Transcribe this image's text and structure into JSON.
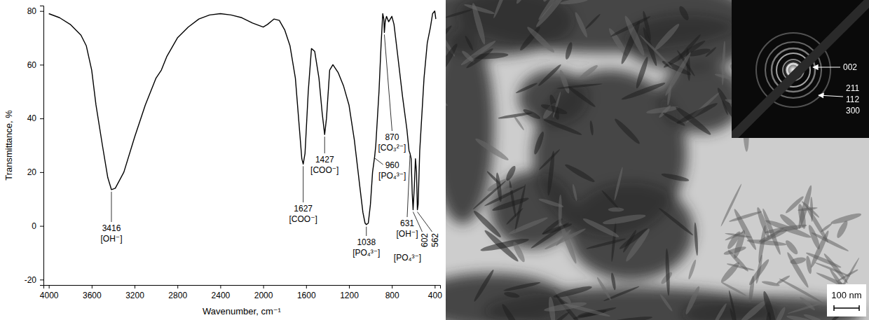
{
  "chart_data": {
    "type": "line",
    "x_label": "Wavenumber, cm⁻¹",
    "y_label": "Transmittance, %",
    "color": "#000000",
    "xlim": [
      4050,
      350
    ],
    "ylim": [
      -22,
      82
    ],
    "xticks": [
      4000,
      3600,
      3200,
      2800,
      2400,
      2000,
      1600,
      1200,
      800,
      400
    ],
    "yticks": [
      -20,
      0,
      20,
      40,
      60,
      80
    ],
    "x": [
      4000,
      3900,
      3800,
      3700,
      3650,
      3600,
      3560,
      3500,
      3450,
      3416,
      3380,
      3300,
      3200,
      3100,
      3000,
      2950,
      2900,
      2800,
      2700,
      2600,
      2500,
      2400,
      2300,
      2200,
      2100,
      2000,
      1960,
      1900,
      1850,
      1800,
      1750,
      1700,
      1660,
      1640,
      1627,
      1610,
      1580,
      1550,
      1520,
      1480,
      1450,
      1427,
      1410,
      1380,
      1350,
      1300,
      1250,
      1200,
      1150,
      1100,
      1070,
      1050,
      1038,
      1020,
      1000,
      980,
      960,
      950,
      920,
      900,
      885,
      875,
      870,
      862,
      850,
      830,
      800,
      780,
      750,
      700,
      660,
      640,
      631,
      620,
      610,
      602,
      590,
      580,
      570,
      562,
      555,
      540,
      500,
      470,
      440,
      420,
      400,
      390
    ],
    "values": [
      79,
      77.5,
      75,
      71,
      67,
      58,
      45,
      30,
      18,
      13.5,
      14,
      20,
      33,
      45,
      55,
      58,
      63,
      70,
      74,
      77,
      78.5,
      79,
      78.5,
      77.5,
      75.5,
      74,
      75,
      77,
      76.5,
      73,
      67,
      55,
      35,
      25,
      23,
      27,
      50,
      66,
      65,
      55,
      42,
      34,
      40,
      58,
      60,
      57,
      52,
      45,
      32,
      15,
      5,
      1,
      0.5,
      1,
      8,
      20,
      26,
      30,
      50,
      68,
      79,
      77,
      72,
      76,
      78,
      76,
      78,
      75,
      65,
      48,
      36,
      28,
      27,
      25,
      12,
      6,
      15,
      25,
      20,
      6,
      8,
      28,
      55,
      68,
      74,
      79,
      80,
      77
    ],
    "annotations": [
      {
        "x": 3416,
        "text": "3416",
        "note": "[OH⁻]"
      },
      {
        "x": 1627,
        "text": "1627",
        "note": "[COO⁻]"
      },
      {
        "x": 1427,
        "text": "1427",
        "note": "[COO⁻]"
      },
      {
        "x": 1038,
        "text": "1038",
        "note": "[PO₄³⁻]"
      },
      {
        "x": 960,
        "text": "960",
        "note": "[PO₄³⁻]"
      },
      {
        "x": 870,
        "text": "870",
        "note": "[CO₃²⁻]"
      },
      {
        "x": 631,
        "text": "631",
        "note": "[OH⁻]"
      },
      {
        "x": 602,
        "text": "602",
        "note": "[PO₄³⁻]"
      },
      {
        "x": 562,
        "text": "562"
      }
    ]
  },
  "micrograph": {
    "diffraction_labels": [
      "002",
      "211",
      "112",
      "300"
    ],
    "scale_bar": "100 nm"
  }
}
